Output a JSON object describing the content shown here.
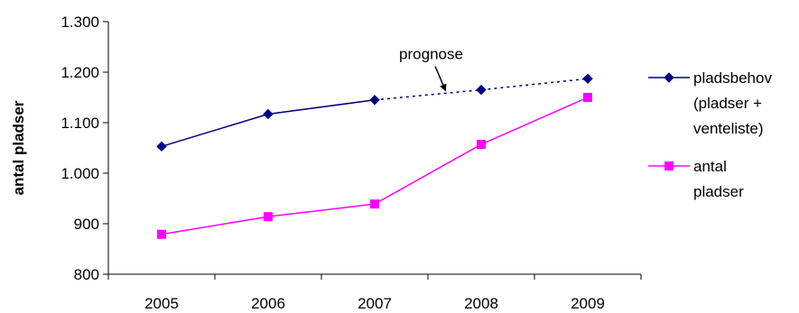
{
  "chart_data": {
    "type": "line",
    "title": "",
    "xlabel": "",
    "ylabel": "antal pladser",
    "categories": [
      "2005",
      "2006",
      "2007",
      "2008",
      "2009"
    ],
    "ylim": [
      800,
      1300
    ],
    "yticks": [
      800,
      900,
      1000,
      1100,
      1200,
      1300
    ],
    "ytick_labels": [
      "800",
      "900",
      "1.000",
      "1.100",
      "1.200",
      "1.300"
    ],
    "grid": false,
    "legend_position": "right",
    "series": [
      {
        "name": "pladsbehov (pladser + venteliste)",
        "legend_lines": [
          "pladsbehov",
          "(pladser +",
          "venteliste)"
        ],
        "values": [
          1053,
          1117,
          1145,
          1165,
          1187
        ],
        "color": "#000080",
        "marker": "diamond",
        "projected_from_index": 2
      },
      {
        "name": "antal pladser",
        "legend_lines": [
          "antal",
          "pladser"
        ],
        "values": [
          879,
          914,
          939,
          1057,
          1150
        ],
        "color": "#ff00ff",
        "marker": "square"
      }
    ],
    "annotations": [
      {
        "text": "prognose",
        "arrow_to_x": 2.67,
        "arrow_to_y": 1158
      }
    ]
  }
}
